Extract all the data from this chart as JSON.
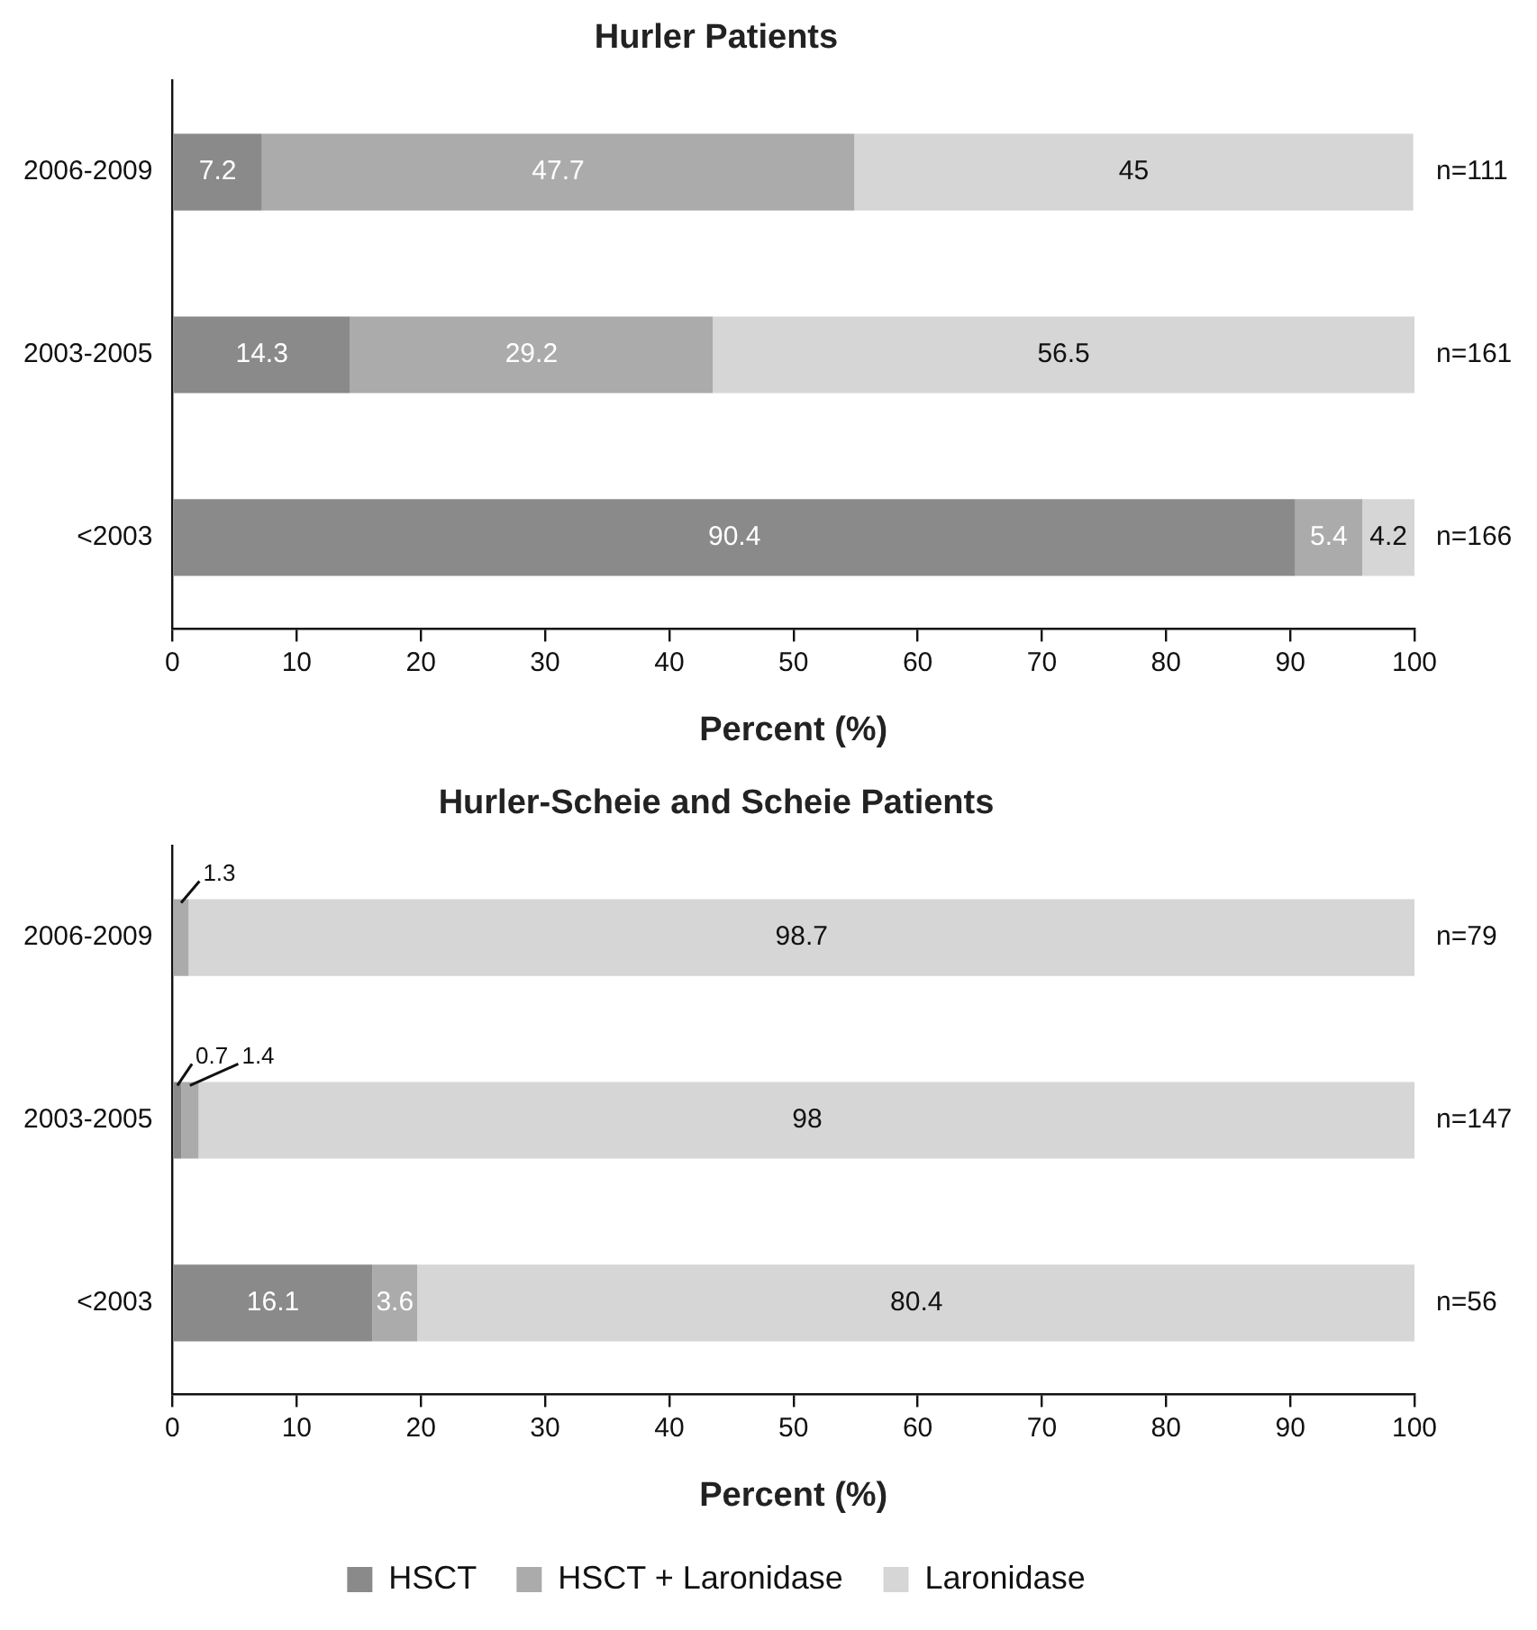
{
  "chart_data": [
    {
      "type": "bar",
      "orientation": "horizontal",
      "stacked": true,
      "title": "Hurler Patients",
      "xlabel": "Percent (%)",
      "categories": [
        "2006-2009",
        "2003-2005",
        "<2003"
      ],
      "series": [
        {
          "color": "#8a8a8a",
          "values": [
            7.2,
            14.3,
            90.4
          ]
        },
        {
          "color": "#ababab",
          "values": [
            47.7,
            29.2,
            5.4
          ]
        },
        {
          "color": "#d6d6d6",
          "values": [
            45,
            56.5,
            4.2
          ]
        }
      ],
      "xlim": [
        0,
        100
      ],
      "xticks": [
        0,
        10,
        20,
        30,
        40,
        50,
        60,
        70,
        80,
        90,
        100
      ],
      "data_labels": true,
      "grid": false,
      "legend": false,
      "annotations": [
        "n=111",
        "n=161",
        "n=166"
      ]
    },
    {
      "type": "bar",
      "orientation": "horizontal",
      "stacked": true,
      "title": "Hurler-Scheie and Scheie Patients",
      "xlabel": "Percent (%)",
      "categories": [
        "2006-2009",
        "2003-2005",
        "<2003"
      ],
      "series": [
        {
          "name": "HSCT",
          "color": "#8a8a8a",
          "values": [
            null,
            0.7,
            16.1
          ]
        },
        {
          "name": "HSCT + Laronidase",
          "color": "#ababab",
          "values": [
            1.3,
            1.4,
            3.6
          ]
        },
        {
          "name": "Laronidase",
          "color": "#d6d6d6",
          "values": [
            98.7,
            98,
            80.4
          ]
        }
      ],
      "xlim": [
        0,
        100
      ],
      "xticks": [
        0,
        10,
        20,
        30,
        40,
        50,
        60,
        70,
        80,
        90,
        100
      ],
      "data_labels": true,
      "grid": false,
      "legend": "bottom",
      "annotations": [
        "n=79",
        "n=147",
        "n=56"
      ]
    }
  ]
}
